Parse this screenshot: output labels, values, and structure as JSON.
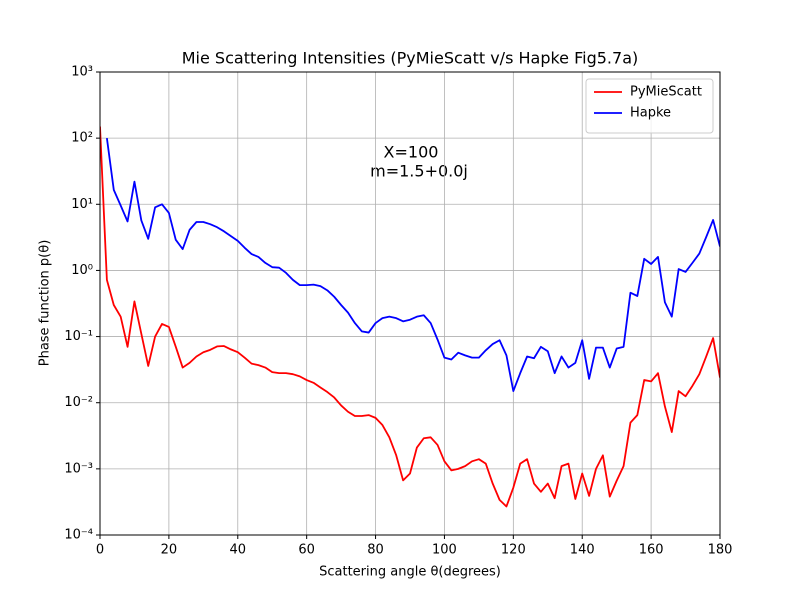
{
  "chart_data": {
    "type": "line",
    "title": "Mie Scattering Intensities (PyMieScatt v/s Hapke Fig5.7a)",
    "x_label": "Scattering angle θ(degrees)",
    "y_label": "Phase function p(θ)",
    "annotations": [
      "X=100",
      "m=1.5+0.0j"
    ],
    "log_y": true,
    "grid": true,
    "legend": "upper right",
    "xlim": [
      0,
      180
    ],
    "xticks": [
      0,
      20,
      40,
      60,
      80,
      100,
      120,
      140,
      160,
      180
    ],
    "ylim": [
      0.0001,
      1000
    ],
    "yticks": [
      {
        "value": 0.0001,
        "label": "10⁻⁴"
      },
      {
        "value": 0.001,
        "label": "10⁻³"
      },
      {
        "value": 0.01,
        "label": "10⁻²"
      },
      {
        "value": 0.1,
        "label": "10⁻¹"
      },
      {
        "value": 1,
        "label": "10⁰"
      },
      {
        "value": 10,
        "label": "10¹"
      },
      {
        "value": 100,
        "label": "10²"
      },
      {
        "value": 1000,
        "label": "10³"
      }
    ],
    "x": [
      0,
      2,
      4,
      6,
      8,
      10,
      12,
      14,
      16,
      18,
      20,
      22,
      24,
      26,
      28,
      30,
      32,
      34,
      36,
      38,
      40,
      42,
      44,
      46,
      48,
      50,
      52,
      54,
      56,
      58,
      60,
      62,
      64,
      66,
      68,
      70,
      72,
      74,
      76,
      78,
      80,
      82,
      84,
      86,
      88,
      90,
      92,
      94,
      96,
      98,
      100,
      102,
      104,
      106,
      108,
      110,
      112,
      114,
      116,
      118,
      120,
      122,
      124,
      126,
      128,
      130,
      132,
      134,
      136,
      138,
      140,
      142,
      144,
      146,
      148,
      150,
      152,
      154,
      156,
      158,
      160,
      162,
      164,
      166,
      168,
      170,
      172,
      174,
      176,
      178,
      180
    ],
    "series": [
      {
        "name": "PyMieScatt",
        "color": "#ff0000",
        "values": [
          150,
          0.72,
          0.3,
          0.2,
          0.07,
          0.34,
          0.11,
          0.036,
          0.1,
          0.155,
          0.14,
          0.07,
          0.034,
          0.04,
          0.05,
          0.058,
          0.063,
          0.071,
          0.072,
          0.064,
          0.058,
          0.048,
          0.039,
          0.037,
          0.034,
          0.029,
          0.028,
          0.028,
          0.027,
          0.025,
          0.022,
          0.02,
          0.017,
          0.0145,
          0.012,
          0.0091,
          0.0073,
          0.0063,
          0.0063,
          0.0065,
          0.0059,
          0.0046,
          0.003,
          0.0016,
          0.00067,
          0.00085,
          0.0021,
          0.0029,
          0.003,
          0.0023,
          0.0013,
          0.00095,
          0.001,
          0.0011,
          0.0013,
          0.0014,
          0.0012,
          0.0006,
          0.00034,
          0.00027,
          0.00052,
          0.0012,
          0.0014,
          0.0006,
          0.00045,
          0.0006,
          0.00036,
          0.0011,
          0.0012,
          0.00035,
          0.00085,
          0.00039,
          0.001,
          0.0016,
          0.00038,
          0.00066,
          0.0011,
          0.005,
          0.0065,
          0.022,
          0.021,
          0.028,
          0.0088,
          0.0036,
          0.015,
          0.0125,
          0.018,
          0.027,
          0.05,
          0.095,
          0.024
        ]
      },
      {
        "name": "Hapke",
        "color": "#0000ff",
        "values": [
          null,
          100,
          16.5,
          9.6,
          5.5,
          22,
          5.7,
          3,
          9,
          10,
          7.4,
          2.9,
          2.1,
          4.1,
          5.4,
          5.4,
          5,
          4.5,
          3.9,
          3.3,
          2.8,
          2.2,
          1.77,
          1.6,
          1.3,
          1.12,
          1.1,
          0.92,
          0.72,
          0.6,
          0.6,
          0.61,
          0.58,
          0.5,
          0.4,
          0.3,
          0.23,
          0.16,
          0.12,
          0.115,
          0.16,
          0.19,
          0.2,
          0.19,
          0.17,
          0.18,
          0.2,
          0.21,
          0.16,
          0.09,
          0.048,
          0.045,
          0.057,
          0.052,
          0.048,
          0.048,
          0.062,
          0.077,
          0.088,
          0.052,
          0.015,
          0.028,
          0.05,
          0.047,
          0.07,
          0.06,
          0.028,
          0.05,
          0.034,
          0.04,
          0.088,
          0.023,
          0.068,
          0.068,
          0.034,
          0.066,
          0.07,
          0.46,
          0.41,
          1.5,
          1.25,
          1.6,
          0.33,
          0.2,
          1.05,
          0.95,
          1.3,
          1.8,
          3.2,
          5.8,
          2.3
        ]
      }
    ]
  }
}
